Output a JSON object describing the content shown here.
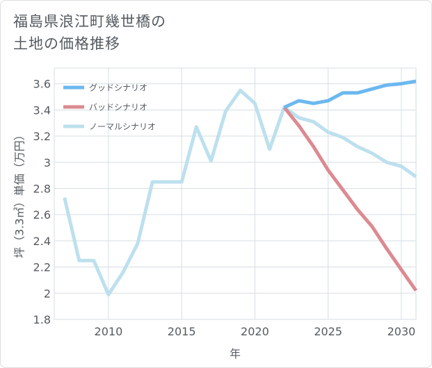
{
  "title": {
    "line1": "福島県浪江町幾世橋の",
    "line2": "土地の価格推移"
  },
  "chart_data": {
    "type": "line",
    "title": "福島県浪江町幾世橋の土地の価格推移",
    "xlabel": "年",
    "ylabel": "坪（3.3㎡）単価（万円）",
    "xlim": [
      2006.3,
      2031
    ],
    "ylim": [
      1.8,
      3.72
    ],
    "xticks": [
      2010,
      2015,
      2020,
      2025,
      2030
    ],
    "xtick_labels": [
      "2010",
      "2015",
      "2020",
      "2025",
      "2030"
    ],
    "yticks": [
      1.8,
      2,
      2.2,
      2.4,
      2.6,
      2.8,
      3,
      3.2,
      3.4,
      3.6
    ],
    "ytick_labels": [
      "1.8",
      "2",
      "2.2",
      "2.4",
      "2.6",
      "2.8",
      "3",
      "3.2",
      "3.4",
      "3.6"
    ],
    "grid": true,
    "legend_position": "top-left",
    "series": [
      {
        "name": "グッドシナリオ",
        "color": "#6cb8f0",
        "x": [
          2022,
          2023,
          2024,
          2025,
          2026,
          2027,
          2028,
          2029,
          2030,
          2031
        ],
        "values": [
          3.42,
          3.47,
          3.45,
          3.47,
          3.53,
          3.53,
          3.56,
          3.59,
          3.6,
          3.62
        ]
      },
      {
        "name": "バッドシナリオ",
        "color": "#dc8a91",
        "x": [
          2022,
          2023,
          2024,
          2025,
          2026,
          2027,
          2028,
          2029,
          2030,
          2031
        ],
        "values": [
          3.42,
          3.28,
          3.12,
          2.94,
          2.79,
          2.64,
          2.51,
          2.34,
          2.18,
          2.02
        ]
      },
      {
        "name": "ノーマルシナリオ",
        "color": "#bde0ee",
        "x": [
          2007,
          2008,
          2009,
          2010,
          2011,
          2012,
          2013,
          2014,
          2015,
          2016,
          2017,
          2018,
          2019,
          2020,
          2021,
          2022,
          2023,
          2024,
          2025,
          2026,
          2027,
          2028,
          2029,
          2030,
          2031
        ],
        "values": [
          2.73,
          2.25,
          2.25,
          1.99,
          2.16,
          2.38,
          2.85,
          2.85,
          2.85,
          3.27,
          3.01,
          3.39,
          3.55,
          3.45,
          3.1,
          3.42,
          3.34,
          3.31,
          3.23,
          3.19,
          3.12,
          3.07,
          3.0,
          2.97,
          2.89
        ]
      }
    ]
  }
}
